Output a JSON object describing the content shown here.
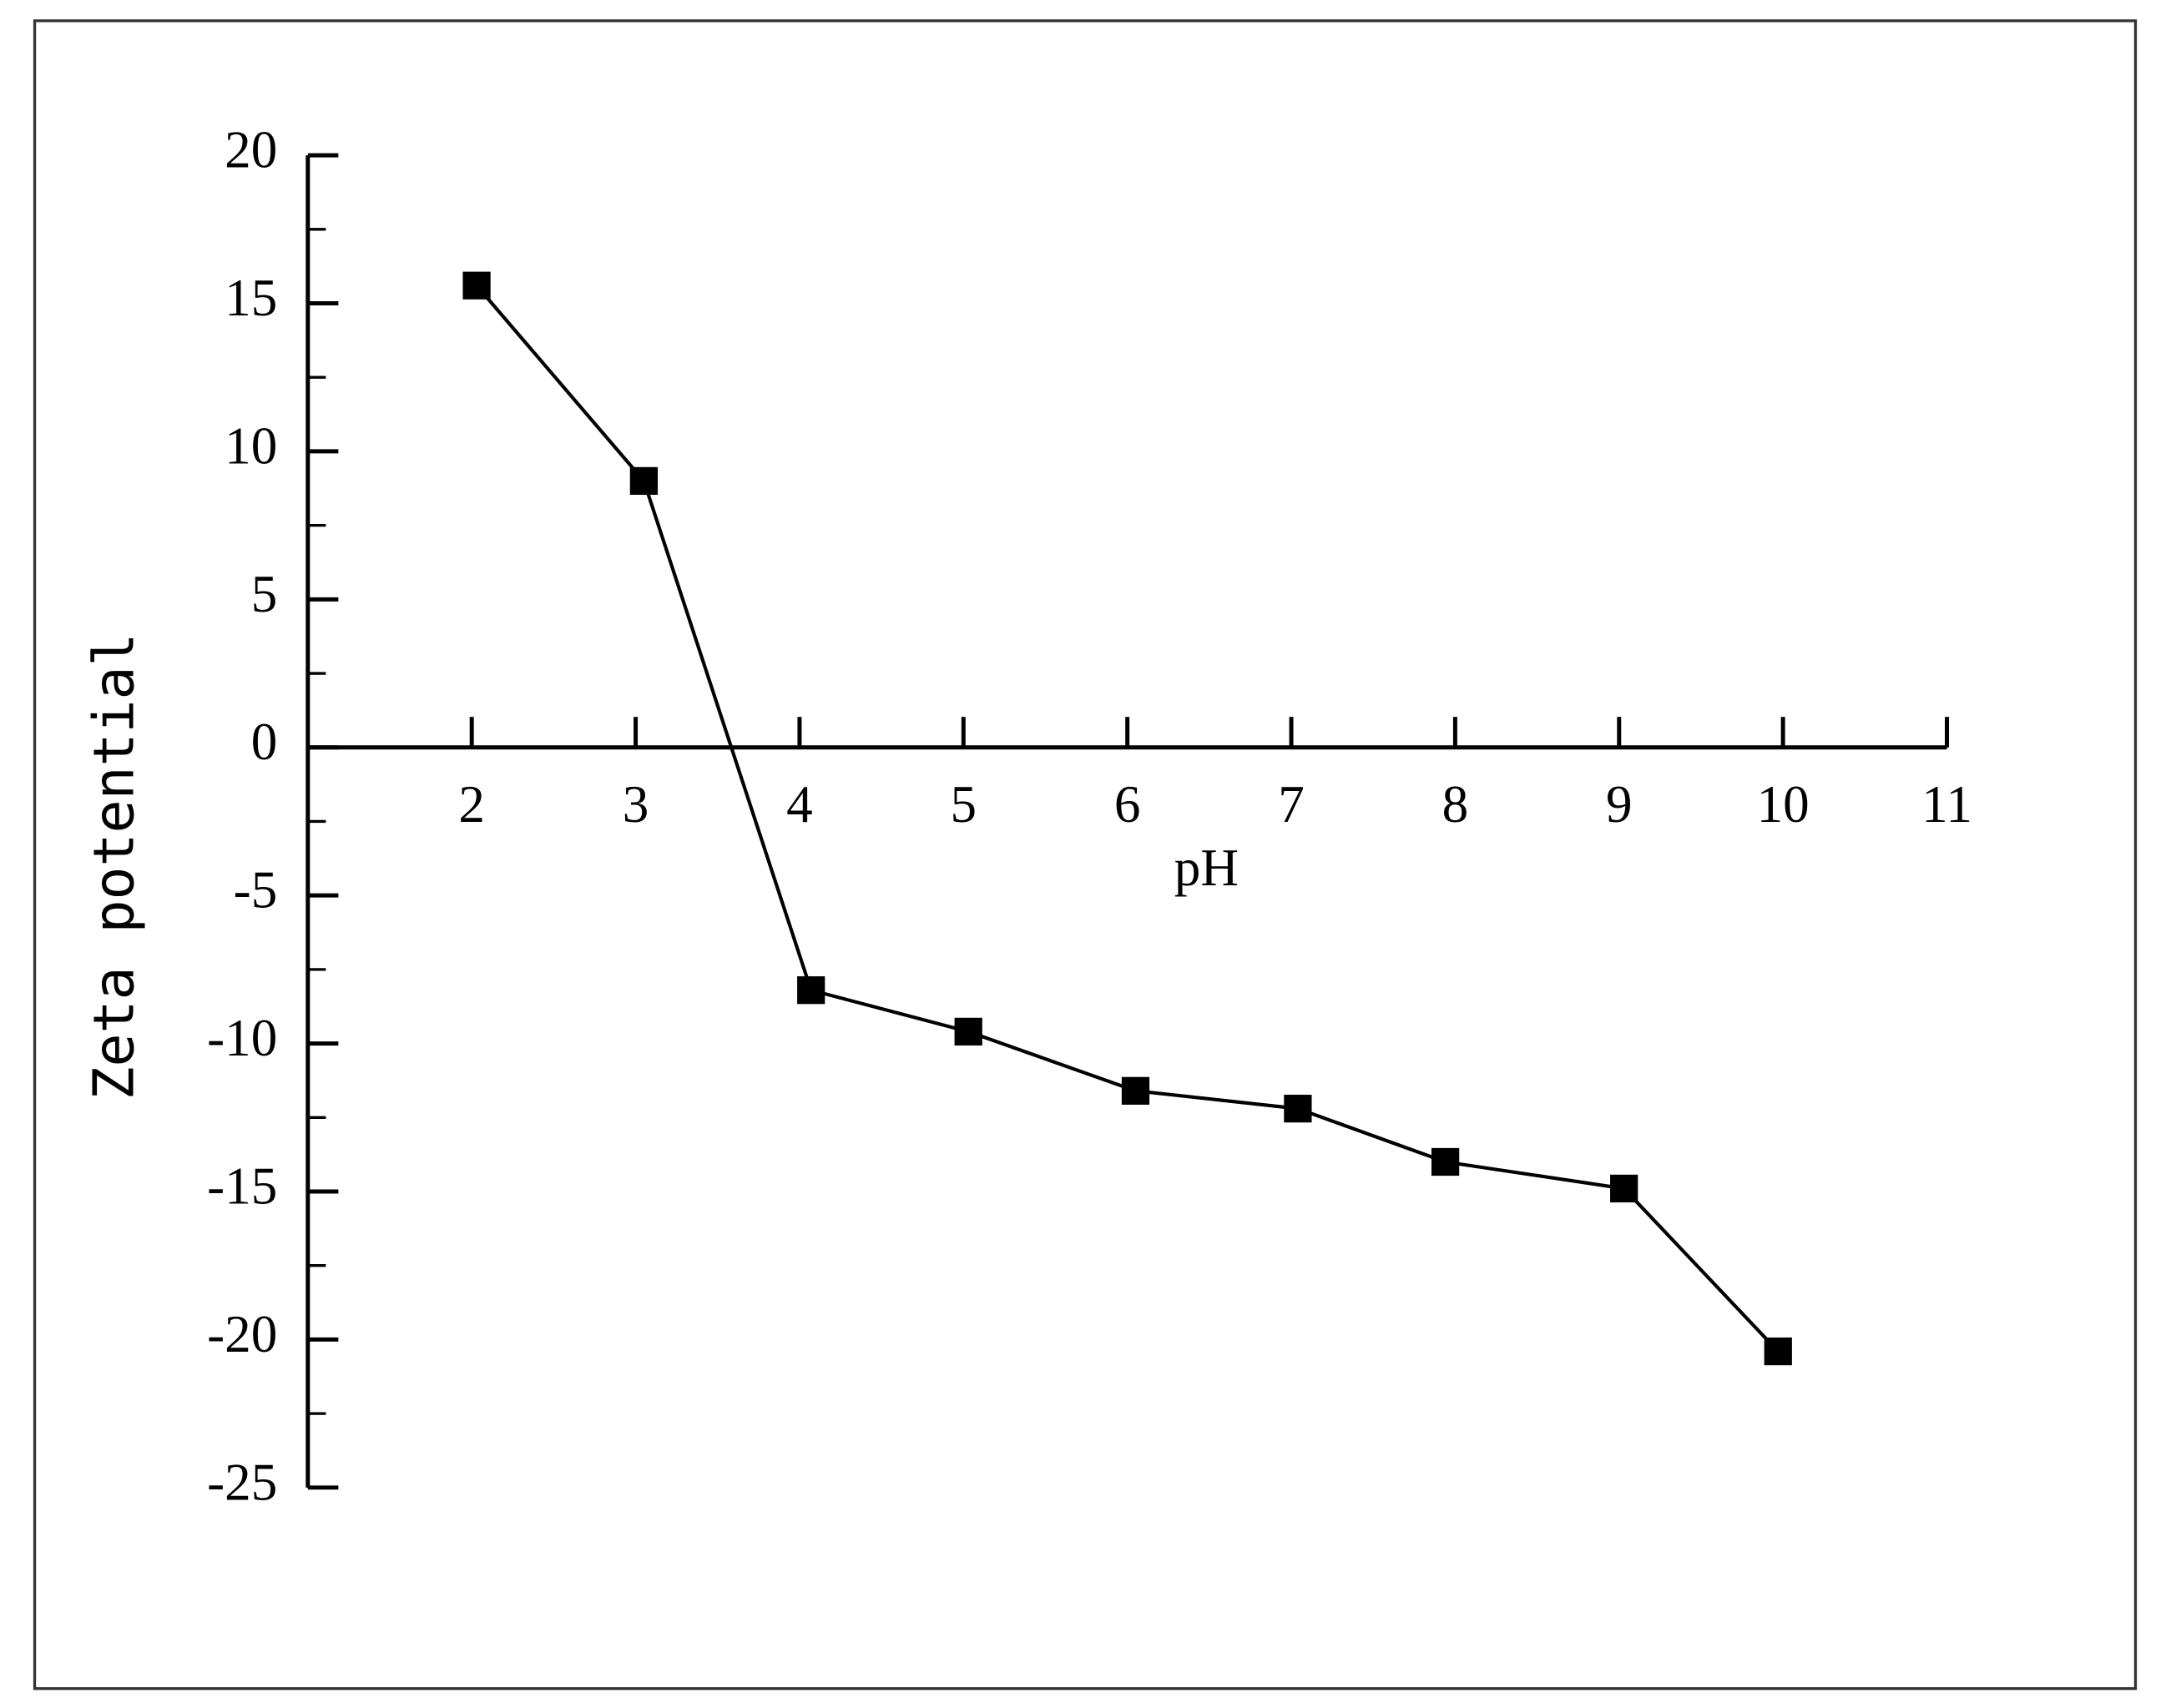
{
  "chart_data": {
    "type": "line",
    "x_label": "pH",
    "y_label": "Zeta potential",
    "x": [
      2.03,
      3.05,
      4.07,
      5.03,
      6.05,
      7.04,
      7.94,
      9.03,
      9.97
    ],
    "series": [
      {
        "name": "Zeta potential",
        "color": "#000000",
        "values": [
          15.6,
          9.0,
          -8.2,
          -9.6,
          -11.6,
          -12.2,
          -14.0,
          -14.9,
          -20.4
        ]
      }
    ],
    "xlim": [
      1,
      11
    ],
    "xticks": [
      2,
      3,
      4,
      5,
      6,
      7,
      8,
      9,
      10,
      11
    ],
    "ylim": [
      -25,
      20
    ],
    "yticks": [
      -25,
      -20,
      -15,
      -10,
      -5,
      0,
      5,
      10,
      15,
      20
    ],
    "yminorticks": [
      -22.5,
      -17.5,
      -12.5,
      -7.5,
      -2.5,
      2.5,
      7.5,
      12.5,
      17.5
    ],
    "marker": "square",
    "grid": false
  }
}
